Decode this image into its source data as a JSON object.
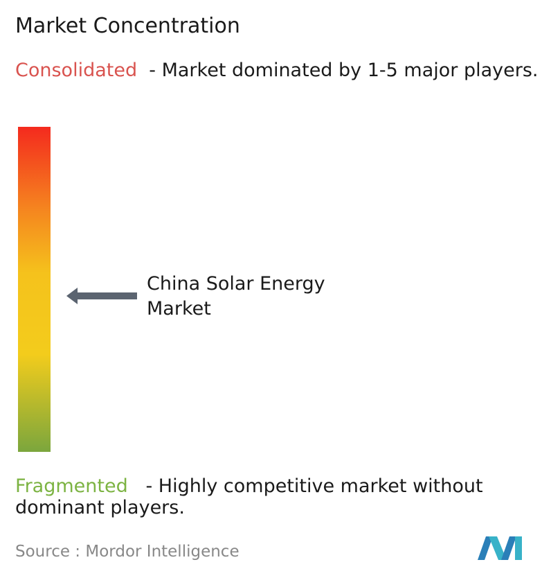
{
  "title": "Market Concentration",
  "scale": {
    "top_label": "Consolidated",
    "top_description": "- Market dominated by 1-5 major players.",
    "bottom_label": "Fragmented",
    "bottom_description": "- Highly competitive market without dominant players."
  },
  "marker": {
    "label": "China Solar Energy Market"
  },
  "source": {
    "prefix": "Source :",
    "name": "Mordor Intelligence"
  }
}
